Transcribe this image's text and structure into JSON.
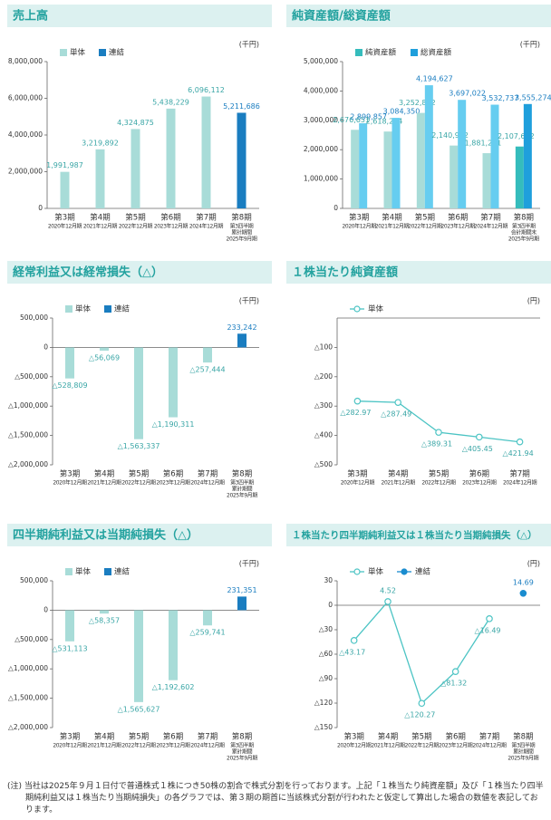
{
  "chart_data": [
    {
      "type": "bar",
      "title": "売上高",
      "unit": "(千円)",
      "categories": [
        [
          "第3期",
          "2020年12月期"
        ],
        [
          "第4期",
          "2021年12月期"
        ],
        [
          "第5期",
          "2022年12月期"
        ],
        [
          "第6期",
          "2023年12月期"
        ],
        [
          "第7期",
          "2024年12月期"
        ],
        [
          "第8期",
          "第3四半期",
          "累計期間",
          "2025年9月期"
        ]
      ],
      "series": [
        {
          "name": "単体",
          "color": "#a8dcd8",
          "values": [
            1991987,
            3219892,
            4324875,
            5438229,
            6096112,
            null
          ],
          "value_labels": [
            "1,991,987",
            "3,219,892",
            "4,324,875",
            "5,438,229",
            "6,096,112",
            null
          ]
        },
        {
          "name": "連結",
          "color": "#1a7dc0",
          "values": [
            null,
            null,
            null,
            null,
            null,
            5211686
          ],
          "value_labels": [
            null,
            null,
            null,
            null,
            null,
            "5,211,686"
          ]
        }
      ],
      "ylim": [
        0,
        8000000
      ],
      "yticks": [
        0,
        {
          "value": 2000000,
          "label": "2,000,000"
        },
        {
          "value": 4000000,
          "label": "4,000,000"
        },
        {
          "value": 6000000,
          "label": "6,000,000"
        },
        {
          "value": 8000000,
          "label": "8,000,000"
        }
      ]
    },
    {
      "type": "bar",
      "title": "純資産額/総資産額",
      "unit": "(千円)",
      "categories": [
        [
          "第3期",
          "2020年12月期"
        ],
        [
          "第4期",
          "2021年12月期"
        ],
        [
          "第5期",
          "2022年12月期"
        ],
        [
          "第6期",
          "2023年12月期"
        ],
        [
          "第7期",
          "2024年12月期"
        ],
        [
          "第8期",
          "第3四半期",
          "会計期間末",
          "2025年9月期"
        ]
      ],
      "series": [
        {
          "name": "純資産額",
          "color": "#35bcbc",
          "colors": [
            "#a8dcd8",
            "#a8dcd8",
            "#a8dcd8",
            "#a8dcd8",
            "#a8dcd8",
            "#35bcbc"
          ],
          "values": [
            2676651,
            2618294,
            3252842,
            2140972,
            1881231,
            2107682
          ],
          "value_labels": [
            "2,676,651",
            "2,618,294",
            "3,252,842",
            "2,140,972",
            "1,881,231",
            "2,107,682"
          ]
        },
        {
          "name": "総資産額",
          "color": "#1f9fdc",
          "colors": [
            "#66cdf0",
            "#66cdf0",
            "#66cdf0",
            "#66cdf0",
            "#66cdf0",
            "#1f9fdc"
          ],
          "values": [
            2899857,
            3084350,
            4194627,
            3697022,
            3532737,
            3555274
          ],
          "value_labels": [
            "2,899,857",
            "3,084,350",
            "4,194,627",
            "3,697,022",
            "3,532,737",
            "3,555,274"
          ]
        }
      ],
      "ylim": [
        0,
        5000000
      ],
      "yticks": [
        0,
        {
          "value": 1000000,
          "label": "1,000,000"
        },
        {
          "value": 2000000,
          "label": "2,000,000"
        },
        {
          "value": 3000000,
          "label": "3,000,000"
        },
        {
          "value": 4000000,
          "label": "4,000,000"
        },
        {
          "value": 5000000,
          "label": "5,000,000"
        }
      ]
    },
    {
      "type": "bar",
      "title": "経常利益又は経常損失（△）",
      "unit": "(千円)",
      "categories": [
        [
          "第3期",
          "2020年12月期"
        ],
        [
          "第4期",
          "2021年12月期"
        ],
        [
          "第5期",
          "2022年12月期"
        ],
        [
          "第6期",
          "2023年12月期"
        ],
        [
          "第7期",
          "2024年12月期"
        ],
        [
          "第8期",
          "第3四半期",
          "累計期間",
          "2025年9月期"
        ]
      ],
      "series": [
        {
          "name": "単体",
          "color": "#a8dcd8",
          "values": [
            -528809,
            -56069,
            -1563337,
            -1190311,
            -257444,
            null
          ],
          "value_labels": [
            "△528,809",
            "△56,069",
            "△1,563,337",
            "△1,190,311",
            "△257,444",
            null
          ]
        },
        {
          "name": "連結",
          "color": "#1a7dc0",
          "values": [
            null,
            null,
            null,
            null,
            null,
            233242
          ],
          "value_labels": [
            null,
            null,
            null,
            null,
            null,
            "233,242"
          ]
        }
      ],
      "ylim": [
        -2000000,
        500000
      ],
      "yticks": [
        {
          "value": -2000000,
          "label": "△2,000,000"
        },
        {
          "value": -1500000,
          "label": "△1,500,000"
        },
        {
          "value": -1000000,
          "label": "△1,000,000"
        },
        {
          "value": -500000,
          "label": "△500,000"
        },
        0,
        {
          "value": 500000,
          "label": "500,000"
        }
      ]
    },
    {
      "type": "line",
      "title": "１株当たり純資産額",
      "unit": "(円)",
      "categories": [
        [
          "第3期",
          "2020年12月期"
        ],
        [
          "第4期",
          "2021年12月期"
        ],
        [
          "第5期",
          "2022年12月期"
        ],
        [
          "第6期",
          "2023年12月期"
        ],
        [
          "第7期",
          "2024年12月期"
        ]
      ],
      "series": [
        {
          "name": "単体",
          "color": "#4cc4c4",
          "values": [
            -282.97,
            -287.49,
            -389.31,
            -405.45,
            -421.94
          ],
          "value_labels": [
            "△282.97",
            "△287.49",
            "△389.31",
            "△405.45",
            "△421.94"
          ]
        }
      ],
      "ylim": [
        -500,
        0
      ],
      "yticks": [
        {
          "value": -500,
          "label": "△500"
        },
        {
          "value": -400,
          "label": "△400"
        },
        {
          "value": -300,
          "label": "△300"
        },
        {
          "value": -200,
          "label": "△200"
        },
        {
          "value": -100,
          "label": "△100"
        }
      ]
    },
    {
      "type": "bar",
      "title": "四半期純利益又は当期純損失（△）",
      "unit": "(千円)",
      "categories": [
        [
          "第3期",
          "2020年12月期"
        ],
        [
          "第4期",
          "2021年12月期"
        ],
        [
          "第5期",
          "2022年12月期"
        ],
        [
          "第6期",
          "2023年12月期"
        ],
        [
          "第7期",
          "2024年12月期"
        ],
        [
          "第8期",
          "第3四半期",
          "累計期間",
          "2025年9月期"
        ]
      ],
      "series": [
        {
          "name": "単体",
          "color": "#a8dcd8",
          "values": [
            -531113,
            -58357,
            -1565627,
            -1192602,
            -259741,
            null
          ],
          "value_labels": [
            "△531,113",
            "△58,357",
            "△1,565,627",
            "△1,192,602",
            "△259,741",
            null
          ]
        },
        {
          "name": "連結",
          "color": "#1a7dc0",
          "values": [
            null,
            null,
            null,
            null,
            null,
            231351
          ],
          "value_labels": [
            null,
            null,
            null,
            null,
            null,
            "231,351"
          ]
        }
      ],
      "ylim": [
        -2000000,
        500000
      ],
      "yticks": [
        {
          "value": -2000000,
          "label": "△2,000,000"
        },
        {
          "value": -1500000,
          "label": "△1,500,000"
        },
        {
          "value": -1000000,
          "label": "△1,000,000"
        },
        {
          "value": -500000,
          "label": "△500,000"
        },
        0,
        {
          "value": 500000,
          "label": "500,000"
        }
      ]
    },
    {
      "type": "line",
      "title": "１株当たり四半期純利益又は１株当たり当期純損失（△）",
      "unit": "(円)",
      "categories": [
        [
          "第3期",
          "2020年12月期"
        ],
        [
          "第4期",
          "2021年12月期"
        ],
        [
          "第5期",
          "2022年12月期"
        ],
        [
          "第6期",
          "2023年12月期"
        ],
        [
          "第7期",
          "2024年12月期"
        ],
        [
          "第8期",
          "第3四半期",
          "累計期間",
          "2025年9月期"
        ]
      ],
      "series": [
        {
          "name": "単体",
          "color": "#4cc4c4",
          "values": [
            -43.17,
            4.52,
            -120.27,
            -81.32,
            -16.49,
            null
          ],
          "value_labels": [
            "△43.17",
            "4.52",
            "△120.27",
            "△81.32",
            "△16.49",
            null
          ]
        },
        {
          "name": "連結",
          "color": "#1a8ccf",
          "values": [
            null,
            null,
            null,
            null,
            null,
            14.69
          ],
          "value_labels": [
            null,
            null,
            null,
            null,
            null,
            "14.69"
          ]
        }
      ],
      "ylim": [
        -150,
        30
      ],
      "yticks": [
        {
          "value": -150,
          "label": "△150"
        },
        {
          "value": -120,
          "label": "△120"
        },
        {
          "value": -90,
          "label": "△90"
        },
        {
          "value": -60,
          "label": "△60"
        },
        {
          "value": -30,
          "label": "△30"
        },
        0,
        30
      ]
    }
  ],
  "note": "(注) 当社は2025年９月１日付で普通株式１株につき50株の割合で株式分割を行っております。上記「１株当たり純資産額」及び「１株当たり四半期純利益又は１株当たり当期純損失」の各グラフでは、第３期の期首に当該株式分割が行われたと仮定して算出した場合の数値を表記しております。"
}
